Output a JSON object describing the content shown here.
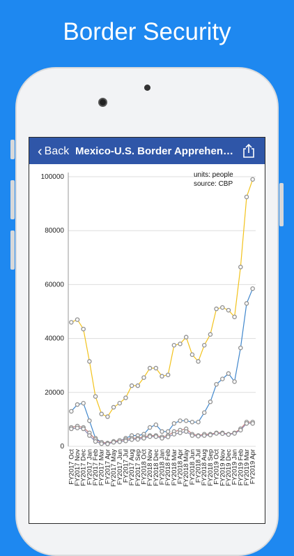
{
  "headline": "Border Security",
  "nav": {
    "back_label": "Back",
    "title": "Mexico-U.S. Border Apprehensio...",
    "share_icon": "share-icon"
  },
  "chart_meta": {
    "units": "units: people",
    "source": "source: CBP"
  },
  "chart_data": {
    "type": "line",
    "title": "",
    "xlabel": "",
    "ylabel": "",
    "ylim": [
      0,
      100000
    ],
    "yticks": [
      0,
      20000,
      40000,
      60000,
      80000,
      100000
    ],
    "categories": [
      "FY2017 Oct",
      "FY2017 Nov",
      "FY2017 Dec",
      "FY2017 Jan",
      "FY2017 Feb",
      "FY2017 Mar",
      "FY2017 Apr",
      "FY2017 May",
      "FY2017 Jun",
      "FY2017 Jul",
      "FY2017 Aug",
      "FY2017 Sep",
      "FY2018 Oct",
      "FY2018 Nov",
      "FY2018 Dec",
      "FY2018 Jan",
      "FY2018 Feb",
      "FY2018 Mar",
      "FY2018 Apr",
      "FY2018 May",
      "FY2018 Jun",
      "FY2018 Jul",
      "FY2018 Aug",
      "FY2018 Sep",
      "FY2019 Oct",
      "FY2019 Nov",
      "FY2019 Dec",
      "FY2019 Jan",
      "FY2019 Feb",
      "FY2019 Mar",
      "FY2019 Apr"
    ],
    "series": [
      {
        "color": "#f2c21b",
        "values": [
          46000,
          47000,
          43500,
          31500,
          18500,
          12000,
          11000,
          14500,
          16000,
          18000,
          22500,
          22500,
          25500,
          29000,
          29000,
          26000,
          26500,
          37500,
          38000,
          40500,
          34000,
          31500,
          37500,
          41500,
          51000,
          51500,
          50500,
          48000,
          66500,
          92500,
          99000
        ]
      },
      {
        "color": "#3f86cc",
        "values": [
          13000,
          15500,
          16000,
          9500,
          3000,
          1500,
          1200,
          1800,
          2000,
          3000,
          4000,
          4000,
          4500,
          7000,
          8000,
          5500,
          5500,
          8500,
          9500,
          9500,
          9000,
          9000,
          12500,
          16500,
          23000,
          25000,
          27000,
          24000,
          36500,
          53000,
          58500
        ]
      },
      {
        "color": "#c47a7a",
        "values": [
          7000,
          7500,
          7000,
          5000,
          2500,
          1500,
          1200,
          1800,
          2200,
          2500,
          3000,
          3000,
          3500,
          4000,
          4000,
          3500,
          4000,
          5500,
          6000,
          6500,
          4500,
          4000,
          4500,
          4500,
          5000,
          5000,
          4500,
          5000,
          6500,
          9000,
          9000
        ]
      },
      {
        "color": "#8a8ab0",
        "values": [
          6500,
          6800,
          6500,
          4000,
          1800,
          1000,
          900,
          1500,
          1700,
          2000,
          2500,
          2600,
          3000,
          3600,
          3600,
          3000,
          3500,
          4500,
          5000,
          5500,
          4000,
          3800,
          4000,
          4200,
          4800,
          4700,
          4400,
          4800,
          6000,
          8500,
          8500
        ]
      }
    ]
  }
}
